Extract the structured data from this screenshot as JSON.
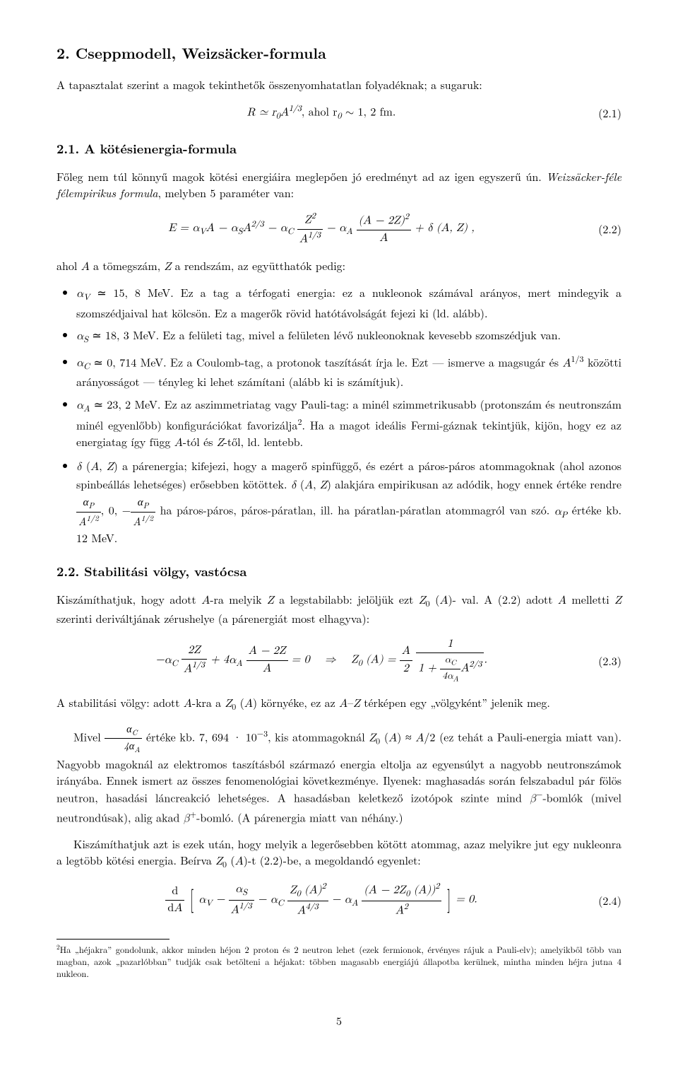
{
  "section_number": "2.",
  "section_title": "Cseppmodell, Weizsäcker-formula",
  "intro_paragraph": "A tapasztalat szerint a magok tekinthetők összenyomhatatlan folyadéknak; a sugaruk:",
  "eq21_lhs": "R ≃ r",
  "eq21_sub0": "0",
  "eq21_A": "A",
  "eq21_exp": "1/3",
  "eq21_mid": ",   ahol   r",
  "eq21_mid2": " ∼ 1, 2 fm.",
  "eq21_num": "(2.1)",
  "sub21_number": "2.1.",
  "sub21_title": "A kötésienergia-formula",
  "p21_a": "Főleg nem túl könnyű magok kötési energiáira meglepően jó eredményt ad az igen egyszerű ún. ",
  "p21_b_italic": "Weizsäcker-féle félempirikus formula",
  "p21_c": ", melyben 5 paraméter van:",
  "eq22_pre": "E = α",
  "eq22_num": "(2.2)",
  "p_after22": "ahol A a tömegszám, Z a rendszám, az együtthatók pedig:",
  "bullet_V": "αV ≃ 15,8 MeV. Ez a tag a térfogati energia: ez a nukleonok számával arányos, mert mindegyik a szomszédjaival hat kölcsön. Ez a magerők rövid hatótávolságát fejezi ki (ld. alább).",
  "bullet_S": "αS ≃ 18,3 MeV. Ez a felületi tag, mivel a felületen lévő nukleonoknak kevesebb szomszédjuk van.",
  "bullet_C": "αC ≃ 0,714 MeV. Ez a Coulomb-tag, a protonok taszítását írja le. Ezt — ismerve a magsugár és A1/3 közötti arányosságot — tényleg ki lehet számítani (alább ki is számítjuk).",
  "bullet_A": "αA ≃ 23,2 MeV. Ez az aszimmetriatag vagy Pauli-tag: a minél szimmetrikusabb (protonszám és neutronszám minél egyenlőbb) konfigurációkat favorizálja2. Ha a magot ideális Fermi-gáznak tekintjük, kijön, hogy ez az energiatag így függ A-tól és Z-től, ld. lentebb.",
  "bullet_delta": "δ (A, Z) a párenergia; kifejezi, hogy a magerő spinfüggő, és ezért a páros-páros atommagoknak (ahol azonos spinbeállás lehetséges) erősebben kötöttek. δ (A, Z) alakjára empirikusan az adódik, hogy ennek értéke rendre αP/A1/2, 0, −αP/A1/2 ha páros-páros, páros-páratlan, ill. ha páratlan-páratlan atommagról van szó. αP értéke kb. 12 MeV.",
  "sub22_number": "2.2.",
  "sub22_title": "Stabilitási völgy, vastócsa",
  "p22a": "Kiszámíthatjuk, hogy adott A-ra melyik Z a legstabilabb: jelöljük ezt Z0 (A)-val. A (2.2) adott A melletti Z szerinti deriváltjának zérushelye (a párenergiát most elhagyva):",
  "eq23_num": "(2.3)",
  "p22b": "A stabilitási völgy: adott A-kra a Z0 (A) környéke, ez az A–Z térképen egy „völgyként” jelenik meg.",
  "p22c_a": "Mivel ",
  "p22c_b": " értéke kb. 7,694 · 10⁻³, kis atommagoknál Z0 (A) ≈ A/2 (ez tehát a Pauli-energia miatt van). Nagyobb magoknál az elektromos taszításból származó energia eltolja az egyensúlyt a nagyobb neutronszámok irányába. Ennek ismert az összes fenomenológiai következménye. Ilyenek: maghasadás során felszabadul pár fölös neutron, hasadási láncreakció lehetséges. A hasadásban keletkező izotópok szinte mind β⁻-bomlók (mivel neutrondúsak), alig akad β⁺-bomló. (A párenergia miatt van néhány.)",
  "p22d": "Kiszámíthatjuk azt is ezek után, hogy melyik a legerősebben kötött atommag, azaz melyikre jut egy nukleonra a legtöbb kötési energia. Beírva Z0 (A)-t (2.2)-be, a megoldandó egyenlet:",
  "eq24_num": "(2.4)",
  "footnote_marker": "2",
  "footnote_text": "Ha „héjakra” gondolunk, akkor minden héjon 2 proton és 2 neutron lehet (ezek fermionok, érvényes rájuk a Pauli-elv); amelyikből több van magban, azok „pazarlóbban” tudják csak betölteni a héjakat: többen magasabb energiájú állapotba kerülnek, mintha minden héjra jutna 4 nukleon.",
  "page_number": "5"
}
